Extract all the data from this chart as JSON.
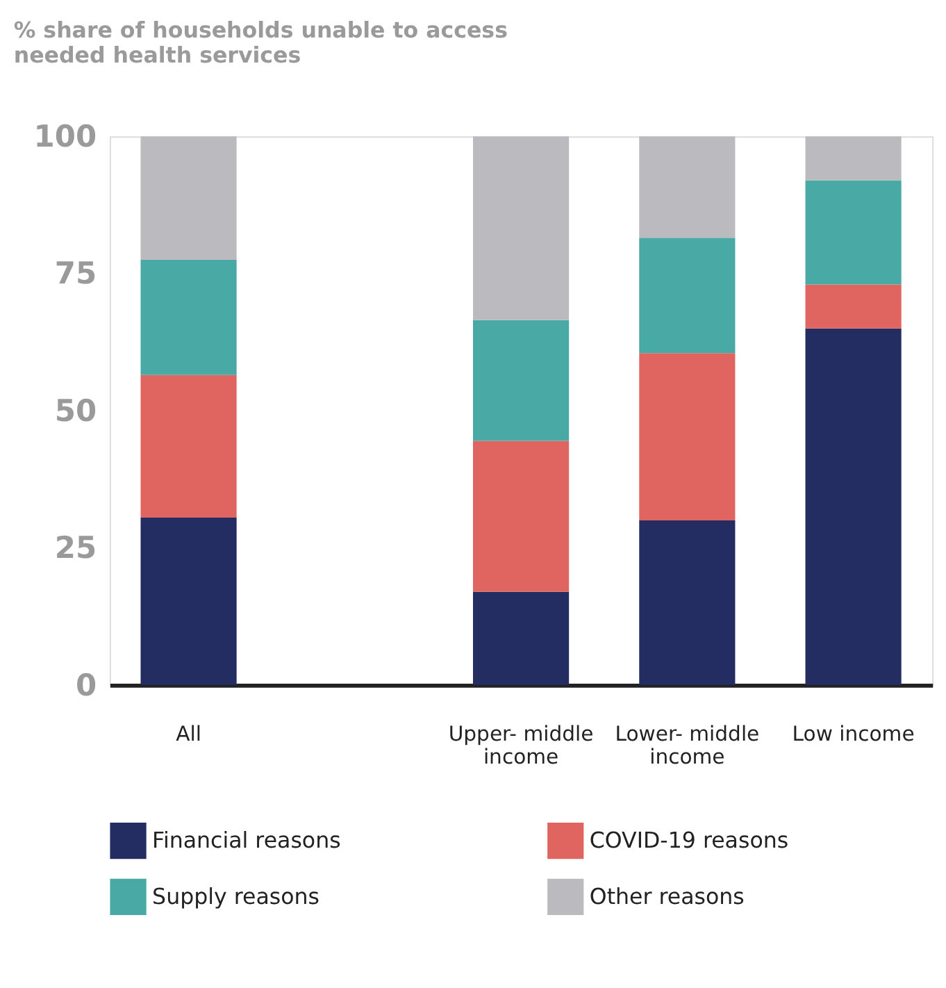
{
  "chart_data": {
    "type": "bar",
    "stacked": true,
    "title": "% share of households unable to access needed health services",
    "categories": [
      "All",
      null,
      "Upper- middle income",
      "Lower- middle income",
      "Low income"
    ],
    "series": [
      {
        "name": "Financial reasons",
        "color": "#232d62",
        "values": [
          30.5,
          null,
          17,
          30,
          65
        ]
      },
      {
        "name": "COVID-19 reasons",
        "color": "#e06560",
        "values": [
          26,
          null,
          27.5,
          30.5,
          8
        ]
      },
      {
        "name": "Supply reasons",
        "color": "#48a9a5",
        "values": [
          21,
          null,
          22,
          21,
          19
        ]
      },
      {
        "name": "Other reasons",
        "color": "#bbbbbf",
        "values": [
          22.5,
          null,
          33.5,
          18.5,
          8
        ]
      }
    ],
    "ylim": [
      0,
      100
    ],
    "yticks": [
      0,
      25,
      50,
      75,
      100
    ],
    "grid": false,
    "legend": "bottom"
  }
}
